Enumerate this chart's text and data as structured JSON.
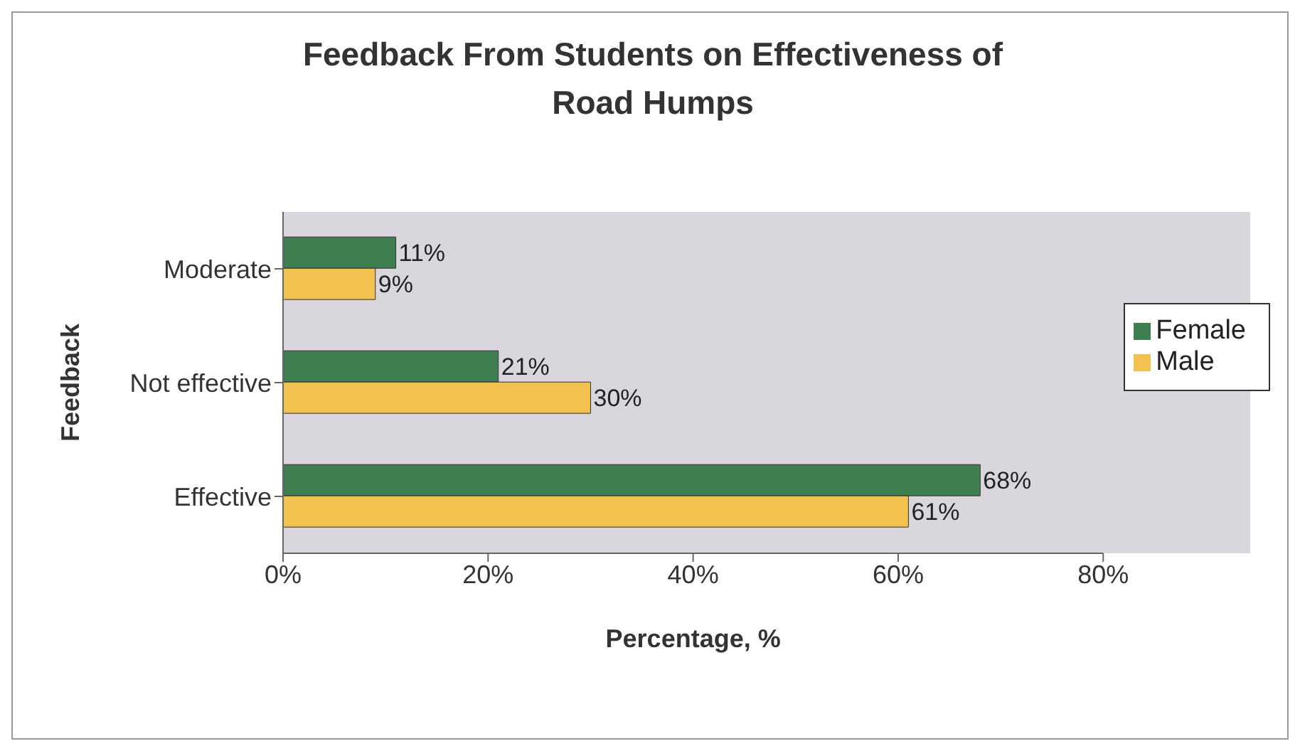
{
  "chart_data": {
    "type": "bar",
    "orientation": "horizontal",
    "title": "Feedback From Students on Effectiveness of Road Humps",
    "xlabel": "Percentage, %",
    "ylabel": "Feedback",
    "categories": [
      "Moderate",
      "Not effective",
      "Effective"
    ],
    "series": [
      {
        "name": "Female",
        "color": "#3f7f4f",
        "values": [
          11,
          21,
          68
        ],
        "value_labels": [
          "11%",
          "21%",
          "68%"
        ]
      },
      {
        "name": "Male",
        "color": "#f2c14e",
        "values": [
          9,
          30,
          61
        ],
        "value_labels": [
          "9%",
          "30%",
          "61%"
        ]
      }
    ],
    "xlim": [
      0,
      80
    ],
    "xticks": [
      {
        "value": 0,
        "label": "0%"
      },
      {
        "value": 20,
        "label": "20%"
      },
      {
        "value": 40,
        "label": "40%"
      },
      {
        "value": 60,
        "label": "60%"
      },
      {
        "value": 80,
        "label": "80%"
      }
    ],
    "grid": false,
    "legend": "right"
  }
}
